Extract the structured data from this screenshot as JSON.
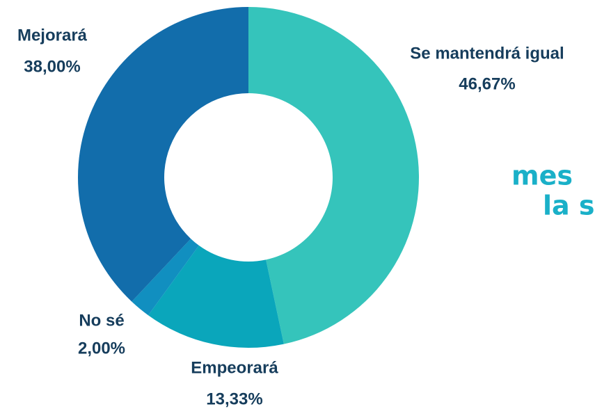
{
  "chart_data": {
    "type": "pie",
    "categories": [
      "Se mantendrá igual",
      "Empeorará",
      "No sé",
      "Mejorará"
    ],
    "values": [
      46.67,
      13.33,
      2.0,
      38.0
    ],
    "value_labels": [
      "46,67%",
      "13,33%",
      "2,00%",
      "38,00%"
    ],
    "colors": [
      "#35c4bb",
      "#0aa6bb",
      "#118fc0",
      "#126dab"
    ],
    "donut": true,
    "annotations": [
      "mes",
      "la s"
    ]
  }
}
